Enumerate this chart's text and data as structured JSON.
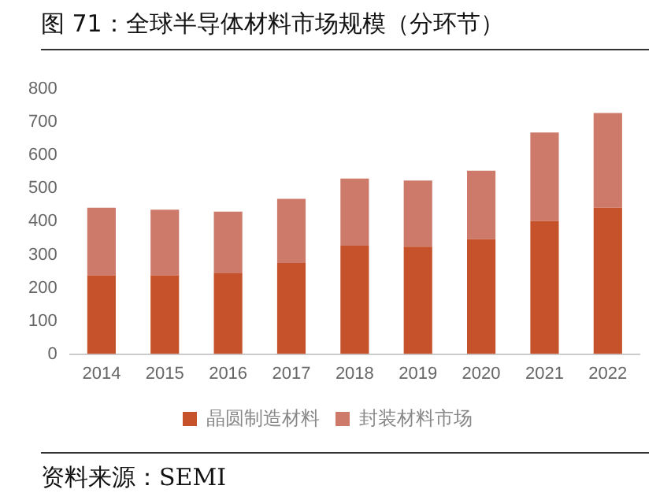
{
  "chart_data": {
    "type": "bar",
    "title": "图 71：全球半导体材料市场规模（分环节）",
    "categories": [
      "2014",
      "2015",
      "2016",
      "2017",
      "2018",
      "2019",
      "2020",
      "2021",
      "2022"
    ],
    "stacked": true,
    "series": [
      {
        "name": "晶圆制造材料",
        "color": "#c5522a",
        "values": [
          238,
          238,
          244,
          275,
          327,
          324,
          347,
          402,
          442
        ]
      },
      {
        "name": "封装材料市场",
        "color": "#cd7a6a",
        "values": [
          204,
          198,
          186,
          194,
          203,
          200,
          207,
          267,
          286
        ]
      }
    ],
    "ylim": [
      0,
      800
    ],
    "yticks": [
      0,
      100,
      200,
      300,
      400,
      500,
      600,
      700,
      800
    ],
    "grid": false,
    "legend": "bottom",
    "annotations": [
      "资料来源：SEMI"
    ]
  }
}
